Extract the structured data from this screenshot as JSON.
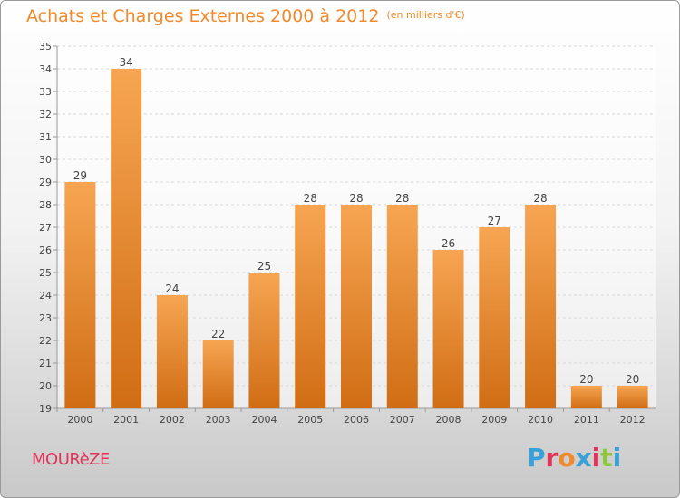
{
  "header": {
    "title": "Achats et Charges Externes 2000 à 2012",
    "subtitle": "(en milliers d'€)"
  },
  "footer": {
    "commune": "MOURèZE",
    "brand": "Proxiti",
    "brand_colors": [
      "#3aa0d8",
      "#e0345a",
      "#f08a2c",
      "#3aa0d8",
      "#e0345a",
      "#8dc63f",
      "#3aa0d8"
    ]
  },
  "colors": {
    "bar_top": "#f7a552",
    "bar_bottom": "#d06d14",
    "accent": "#f08a2c"
  },
  "chart_data": {
    "type": "bar",
    "categories": [
      "2000",
      "2001",
      "2002",
      "2003",
      "2004",
      "2005",
      "2006",
      "2007",
      "2008",
      "2009",
      "2010",
      "2011",
      "2012"
    ],
    "values": [
      29,
      34,
      24,
      22,
      25,
      28,
      28,
      28,
      26,
      27,
      28,
      20,
      20
    ],
    "ylim": [
      19,
      35
    ],
    "yticks": [
      19,
      20,
      21,
      22,
      23,
      24,
      25,
      26,
      27,
      28,
      29,
      30,
      31,
      32,
      33,
      34,
      35
    ],
    "grid": true,
    "title": "Achats et Charges Externes 2000 à 2012",
    "xlabel": "",
    "ylabel": ""
  }
}
